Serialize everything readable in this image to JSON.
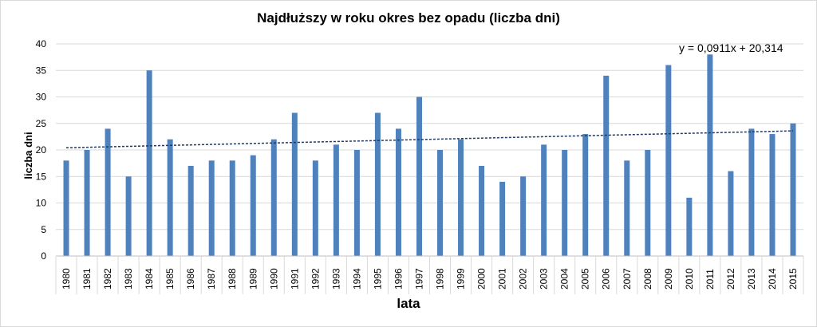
{
  "chart_data": {
    "type": "bar",
    "title": "Najdłuższy  w roku okres bez opadu (liczba dni)",
    "xlabel": "lata",
    "ylabel": "liczba dni",
    "categories": [
      "1980",
      "1981",
      "1982",
      "1983",
      "1984",
      "1985",
      "1986",
      "1987",
      "1988",
      "1989",
      "1990",
      "1991",
      "1992",
      "1993",
      "1994",
      "1995",
      "1996",
      "1997",
      "1998",
      "1999",
      "2000",
      "2001",
      "2002",
      "2003",
      "2004",
      "2005",
      "2006",
      "2007",
      "2008",
      "2009",
      "2010",
      "2011",
      "2012",
      "2013",
      "2014",
      "2015"
    ],
    "series": [
      {
        "values": [
          18,
          20,
          24,
          15,
          35,
          22,
          17,
          18,
          18,
          19,
          22,
          27,
          18,
          21,
          20,
          27,
          24,
          30,
          20,
          22,
          17,
          14,
          15,
          21,
          20,
          23,
          34,
          18,
          20,
          36,
          11,
          38,
          16,
          24,
          23,
          25
        ]
      }
    ],
    "ylim": [
      0,
      40
    ],
    "yticks": [
      0,
      5,
      10,
      15,
      20,
      25,
      30,
      35,
      40
    ],
    "grid": true,
    "legend": "none",
    "trendline": {
      "type": "linear",
      "slope": 0.0911,
      "intercept": 20.314,
      "equation": "y = 0,0911x + 20,314",
      "style": "dashed"
    },
    "colors": {
      "bar": "#4f81bd",
      "trendline": "#1f3864",
      "grid": "#d9d9d9",
      "axis": "#bfbfbf"
    }
  }
}
